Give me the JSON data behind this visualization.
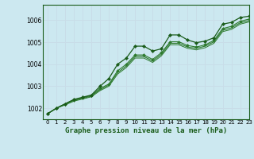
{
  "title": "Graphe pression niveau de la mer (hPa)",
  "bg_color": "#cce8f0",
  "fig_bg_color": "#cce8f0",
  "grid_color": "#aad4e0",
  "line_color_dark": "#1a5c1a",
  "line_color_mid": "#2d7a2d",
  "xlim": [
    -0.5,
    23
  ],
  "ylim": [
    1001.5,
    1006.7
  ],
  "yticks": [
    1002,
    1003,
    1004,
    1005,
    1006
  ],
  "xtick_labels": [
    "0",
    "1",
    "2",
    "3",
    "4",
    "5",
    "6",
    "7",
    "8",
    "9",
    "10",
    "11",
    "12",
    "13",
    "14",
    "15",
    "16",
    "17",
    "18",
    "19",
    "20",
    "21",
    "22",
    "23"
  ],
  "series1": [
    1001.75,
    1002.0,
    1002.2,
    1002.4,
    1002.5,
    1002.6,
    1003.0,
    1003.35,
    1004.0,
    1004.28,
    1004.82,
    1004.82,
    1004.6,
    1004.7,
    1005.33,
    1005.33,
    1005.1,
    1004.98,
    1005.05,
    1005.2,
    1005.82,
    1005.9,
    1006.12,
    1006.18
  ],
  "series2": [
    1001.75,
    1002.0,
    1002.2,
    1002.38,
    1002.48,
    1002.58,
    1002.9,
    1003.1,
    1003.7,
    1004.0,
    1004.42,
    1004.42,
    1004.22,
    1004.52,
    1005.02,
    1005.02,
    1004.85,
    1004.78,
    1004.88,
    1005.08,
    1005.62,
    1005.72,
    1005.95,
    1006.05
  ],
  "series3": [
    1001.75,
    1002.0,
    1002.18,
    1002.35,
    1002.45,
    1002.55,
    1002.85,
    1003.05,
    1003.62,
    1003.92,
    1004.35,
    1004.35,
    1004.15,
    1004.45,
    1004.95,
    1004.95,
    1004.78,
    1004.72,
    1004.82,
    1005.02,
    1005.55,
    1005.65,
    1005.88,
    1005.98
  ],
  "series4": [
    1001.75,
    1002.0,
    1002.15,
    1002.32,
    1002.42,
    1002.52,
    1002.8,
    1003.0,
    1003.55,
    1003.85,
    1004.28,
    1004.28,
    1004.08,
    1004.38,
    1004.88,
    1004.88,
    1004.72,
    1004.65,
    1004.75,
    1004.95,
    1005.48,
    1005.58,
    1005.82,
    1005.92
  ]
}
